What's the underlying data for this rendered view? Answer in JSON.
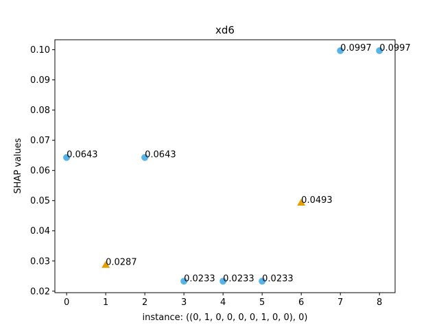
{
  "chart_data": {
    "type": "scatter",
    "title": "xd6",
    "xlabel": "instance: ((0, 1, 0, 0, 0, 0, 1, 0, 0), 0)",
    "ylabel": "SHAP values",
    "xlim": [
      -0.3,
      8.4
    ],
    "ylim": [
      0.0195,
      0.1033
    ],
    "x_ticks": [
      0,
      1,
      2,
      3,
      4,
      5,
      6,
      7,
      8
    ],
    "y_ticks": [
      0.02,
      0.03,
      0.04,
      0.05,
      0.06,
      0.07,
      0.08,
      0.09,
      0.1
    ],
    "y_tick_labels": [
      "0.02",
      "0.03",
      "0.04",
      "0.05",
      "0.06",
      "0.07",
      "0.08",
      "0.09",
      "0.10"
    ],
    "grid": false,
    "colors": {
      "circle": "#56b4e9",
      "triangle": "#e69f00"
    },
    "points": [
      {
        "x": 0,
        "y": 0.0643,
        "label": "0.0643",
        "marker": "circle"
      },
      {
        "x": 1,
        "y": 0.0287,
        "label": "0.0287",
        "marker": "triangle"
      },
      {
        "x": 2,
        "y": 0.0643,
        "label": "0.0643",
        "marker": "circle"
      },
      {
        "x": 3,
        "y": 0.0233,
        "label": "0.0233",
        "marker": "circle"
      },
      {
        "x": 4,
        "y": 0.0233,
        "label": "0.0233",
        "marker": "circle"
      },
      {
        "x": 5,
        "y": 0.0233,
        "label": "0.0233",
        "marker": "circle"
      },
      {
        "x": 6,
        "y": 0.0493,
        "label": "0.0493",
        "marker": "triangle"
      },
      {
        "x": 7,
        "y": 0.0997,
        "label": "0.0997",
        "marker": "circle"
      },
      {
        "x": 8,
        "y": 0.0997,
        "label": "0.0997",
        "marker": "circle"
      }
    ]
  }
}
